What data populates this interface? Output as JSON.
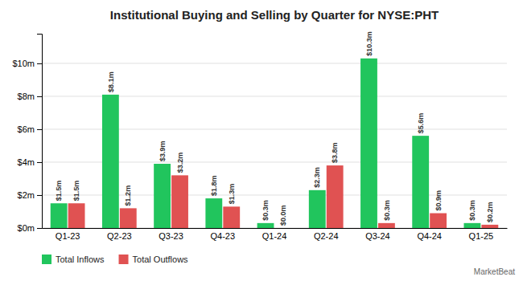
{
  "chart_data": {
    "type": "bar",
    "title": "Institutional Buying and Selling by Quarter for NYSE:PHT",
    "categories": [
      "Q1-23",
      "Q2-23",
      "Q3-23",
      "Q4-23",
      "Q1-24",
      "Q2-24",
      "Q3-24",
      "Q4-24",
      "Q1-25"
    ],
    "series": [
      {
        "name": "Total Inflows",
        "color": "#21c55d",
        "values": [
          1.5,
          8.1,
          3.9,
          1.8,
          0.3,
          2.3,
          10.3,
          5.6,
          0.3
        ],
        "value_labels": [
          "$1.5m",
          "$8.1m",
          "$3.9m",
          "$1.8m",
          "$0.3m",
          "$2.3m",
          "$10.3m",
          "$5.6m",
          "$0.3m"
        ]
      },
      {
        "name": "Total Outflows",
        "color": "#e05252",
        "values": [
          1.5,
          1.2,
          3.2,
          1.3,
          0.0,
          3.8,
          0.3,
          0.9,
          0.2
        ],
        "value_labels": [
          "$1.5m",
          "$1.2m",
          "$3.2m",
          "$1.3m",
          "$0.0m",
          "$3.8m",
          "$0.3m",
          "$0.9m",
          "$0.2m"
        ]
      }
    ],
    "ylim": [
      0,
      11.8
    ],
    "yticks": [
      {
        "value": 0,
        "label": "$0m"
      },
      {
        "value": 2,
        "label": "$2m"
      },
      {
        "value": 4,
        "label": "$4m"
      },
      {
        "value": 6,
        "label": "$6m"
      },
      {
        "value": 8,
        "label": "$8m"
      },
      {
        "value": 10,
        "label": "$10m"
      }
    ],
    "grid": true,
    "legend": "bottom",
    "data_labels": true,
    "annotations": [
      {
        "text": "MarketBeat"
      }
    ]
  }
}
